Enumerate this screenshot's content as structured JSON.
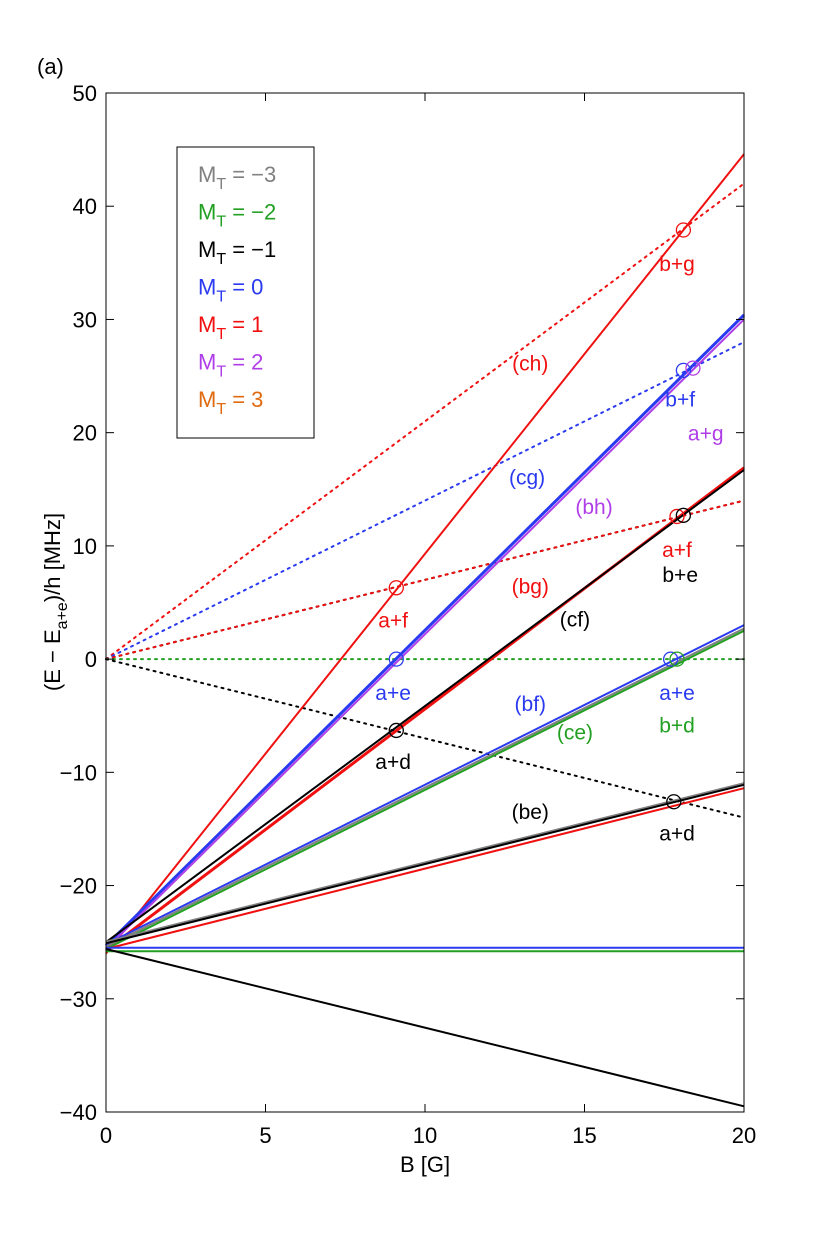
{
  "panel_label": "(a)",
  "chart_data": {
    "type": "line",
    "title": "",
    "xlabel": "B [G]",
    "ylabel": {
      "main": "(E − E",
      "sub": "a+e",
      "tail": ")/h [MHz]"
    },
    "xlim": [
      0,
      20
    ],
    "ylim": [
      -40,
      50
    ],
    "x_ticks": [
      {
        "value": 0,
        "label": "0"
      },
      {
        "value": 5,
        "label": "5"
      },
      {
        "value": 10,
        "label": "10"
      },
      {
        "value": 15,
        "label": "15"
      },
      {
        "value": 20,
        "label": "20"
      }
    ],
    "y_ticks": [
      {
        "value": -40,
        "label": "−40"
      },
      {
        "value": -30,
        "label": "−30"
      },
      {
        "value": -20,
        "label": "−20"
      },
      {
        "value": -10,
        "label": "−10"
      },
      {
        "value": 0,
        "label": "0"
      },
      {
        "value": 10,
        "label": "10"
      },
      {
        "value": 20,
        "label": "20"
      },
      {
        "value": 30,
        "label": "30"
      },
      {
        "value": 40,
        "label": "40"
      },
      {
        "value": 50,
        "label": "50"
      }
    ],
    "grid": false,
    "legend_position": "top-left",
    "legend": [
      {
        "main": "M",
        "sub": "T",
        "tail": " = −3",
        "color": "#808080"
      },
      {
        "main": "M",
        "sub": "T",
        "tail": " = −2",
        "color": "#22a022"
      },
      {
        "main": "M",
        "sub": "T",
        "tail": " = −1",
        "color": "#000000"
      },
      {
        "main": "M",
        "sub": "T",
        "tail": " =  0",
        "color": "#2a3af0"
      },
      {
        "main": "M",
        "sub": "T",
        "tail": " =  1",
        "color": "#f01010"
      },
      {
        "main": "M",
        "sub": "T",
        "tail": " =  2",
        "color": "#b03ee8"
      },
      {
        "main": "M",
        "sub": "T",
        "tail": " =  3",
        "color": "#e06a10"
      }
    ],
    "solid_series": [
      {
        "color": "#f01010",
        "width": 2,
        "points": [
          [
            0,
            -26.0
          ],
          [
            20,
            44.6
          ]
        ]
      },
      {
        "color": "#2a3af0",
        "width": 3,
        "points": [
          [
            0,
            -25.3
          ],
          [
            20,
            30.4
          ]
        ]
      },
      {
        "color": "#b03ee8",
        "width": 2,
        "points": [
          [
            0,
            -25.6
          ],
          [
            20,
            30.0
          ]
        ]
      },
      {
        "color": "#f01010",
        "width": 3,
        "points": [
          [
            0,
            -25.7
          ],
          [
            20,
            16.9
          ]
        ]
      },
      {
        "color": "#000000",
        "width": 2,
        "points": [
          [
            0,
            -25.0
          ],
          [
            20,
            16.7
          ]
        ]
      },
      {
        "color": "#2a3af0",
        "width": 2,
        "points": [
          [
            0,
            -25.2
          ],
          [
            20,
            3.0
          ]
        ]
      },
      {
        "color": "#808080",
        "width": 2,
        "points": [
          [
            0,
            -25.4
          ],
          [
            20,
            2.7
          ]
        ]
      },
      {
        "color": "#22a022",
        "width": 2,
        "points": [
          [
            0,
            -25.6
          ],
          [
            20,
            2.5
          ]
        ]
      },
      {
        "color": "#808080",
        "width": 3,
        "points": [
          [
            0,
            -25.0
          ],
          [
            20,
            -11.0
          ]
        ]
      },
      {
        "color": "#000000",
        "width": 2,
        "points": [
          [
            0,
            -25.1
          ],
          [
            20,
            -11.1
          ]
        ]
      },
      {
        "color": "#f01010",
        "width": 2,
        "points": [
          [
            0,
            -25.6
          ],
          [
            20,
            -11.4
          ]
        ]
      },
      {
        "color": "#2a3af0",
        "width": 2,
        "points": [
          [
            0,
            -25.5
          ],
          [
            20,
            -25.5
          ]
        ]
      },
      {
        "color": "#22a022",
        "width": 2,
        "points": [
          [
            0,
            -25.8
          ],
          [
            20,
            -25.8
          ]
        ]
      },
      {
        "color": "#000000",
        "width": 2,
        "points": [
          [
            0,
            -25.6
          ],
          [
            20,
            -39.5
          ]
        ]
      }
    ],
    "dotted_series": [
      {
        "color": "#f01010",
        "points": [
          [
            0,
            0
          ],
          [
            20,
            42.0
          ]
        ]
      },
      {
        "color": "#2a3af0",
        "points": [
          [
            0,
            0
          ],
          [
            20,
            28.0
          ]
        ]
      },
      {
        "color": "#000000",
        "points": [
          [
            0,
            0
          ],
          [
            20,
            14.0
          ]
        ]
      },
      {
        "color": "#f01010",
        "points": [
          [
            0,
            0
          ],
          [
            20,
            14.0
          ]
        ]
      },
      {
        "color": "#22a022",
        "points": [
          [
            0,
            0
          ],
          [
            20,
            0
          ]
        ]
      },
      {
        "color": "#000000",
        "points": [
          [
            0,
            0
          ],
          [
            20,
            -14.0
          ]
        ]
      }
    ],
    "markers": [
      {
        "x": 18.1,
        "y": 37.9,
        "color": "#f01010"
      },
      {
        "x": 18.1,
        "y": 25.5,
        "color": "#2a3af0"
      },
      {
        "x": 18.4,
        "y": 25.7,
        "color": "#b03ee8"
      },
      {
        "x": 9.1,
        "y": 6.3,
        "color": "#f01010"
      },
      {
        "x": 17.9,
        "y": 12.6,
        "color": "#f01010"
      },
      {
        "x": 18.1,
        "y": 12.7,
        "color": "#000000"
      },
      {
        "x": 9.1,
        "y": 0.0,
        "color": "#2a3af0"
      },
      {
        "x": 17.7,
        "y": 0.0,
        "color": "#2a3af0"
      },
      {
        "x": 17.9,
        "y": 0.0,
        "color": "#22a022"
      },
      {
        "x": 9.1,
        "y": -6.3,
        "color": "#000000"
      },
      {
        "x": 17.8,
        "y": -12.6,
        "color": "#000000"
      }
    ],
    "annotations": [
      {
        "text": "b+g",
        "x": 17.9,
        "y": 34.3,
        "color": "#f01010"
      },
      {
        "text": "(ch)",
        "x": 13.3,
        "y": 25.5,
        "color": "#f01010"
      },
      {
        "text": "b+f",
        "x": 18.0,
        "y": 22.3,
        "color": "#2a3af0"
      },
      {
        "text": "a+g",
        "x": 18.8,
        "y": 19.3,
        "color": "#b03ee8"
      },
      {
        "text": "(cg)",
        "x": 13.2,
        "y": 15.4,
        "color": "#2a3af0"
      },
      {
        "text": "(bh)",
        "x": 15.3,
        "y": 12.8,
        "color": "#b03ee8"
      },
      {
        "text": "a+f",
        "x": 17.9,
        "y": 9.0,
        "color": "#f01010"
      },
      {
        "text": "b+e",
        "x": 18.0,
        "y": 6.8,
        "color": "#000000"
      },
      {
        "text": "(bg)",
        "x": 13.3,
        "y": 5.8,
        "color": "#f01010"
      },
      {
        "text": "a+f",
        "x": 9.0,
        "y": 2.8,
        "color": "#f01010"
      },
      {
        "text": "(cf)",
        "x": 14.7,
        "y": 2.9,
        "color": "#000000"
      },
      {
        "text": "a+e",
        "x": 9.0,
        "y": -3.6,
        "color": "#2a3af0"
      },
      {
        "text": "a+e",
        "x": 17.9,
        "y": -3.6,
        "color": "#2a3af0"
      },
      {
        "text": "(bf)",
        "x": 13.3,
        "y": -4.6,
        "color": "#2a3af0"
      },
      {
        "text": "b+d",
        "x": 17.9,
        "y": -6.5,
        "color": "#22a022"
      },
      {
        "text": "(ce)",
        "x": 14.7,
        "y": -7.1,
        "color": "#22a022"
      },
      {
        "text": "a+d",
        "x": 9.0,
        "y": -9.7,
        "color": "#000000"
      },
      {
        "text": "(be)",
        "x": 13.3,
        "y": -14.1,
        "color": "#000000"
      },
      {
        "text": "a+d",
        "x": 17.9,
        "y": -16.0,
        "color": "#000000"
      }
    ]
  }
}
